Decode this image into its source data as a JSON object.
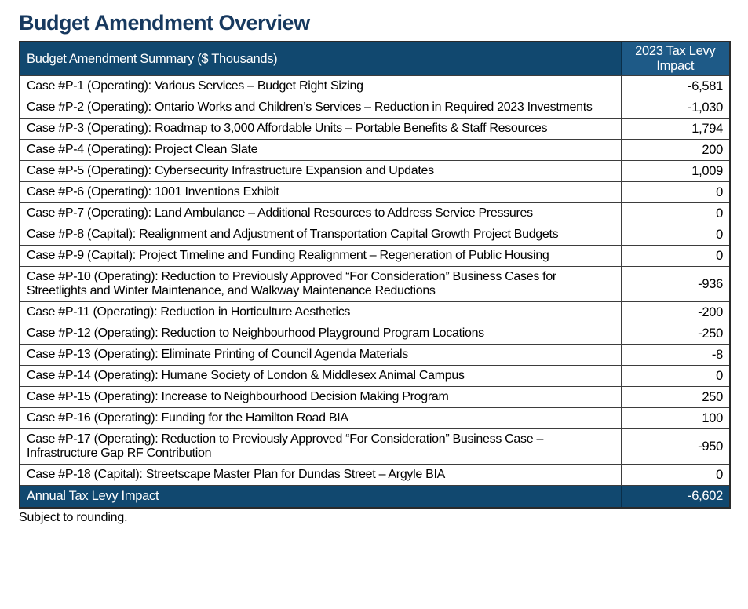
{
  "page": {
    "title": "Budget Amendment Overview",
    "footnote": "Subject to rounding."
  },
  "table": {
    "header": {
      "summary": "Budget Amendment Summary ($ Thousands)",
      "impact": "2023 Tax Levy Impact"
    },
    "rows": [
      {
        "label": "Case #P-1 (Operating): Various Services – Budget Right Sizing",
        "value": "-6,581"
      },
      {
        "label": "Case #P-2 (Operating): Ontario Works and Children’s Services – Reduction in Required 2023 Investments",
        "value": "-1,030"
      },
      {
        "label": "Case #P-3 (Operating): Roadmap to 3,000 Affordable Units – Portable Benefits & Staff Resources",
        "value": "1,794"
      },
      {
        "label": "Case #P-4 (Operating): Project Clean Slate",
        "value": "200"
      },
      {
        "label": "Case #P-5 (Operating): Cybersecurity Infrastructure Expansion and Updates",
        "value": "1,009"
      },
      {
        "label": "Case #P-6 (Operating): 1001 Inventions Exhibit",
        "value": "0"
      },
      {
        "label": "Case #P-7 (Operating): Land Ambulance – Additional Resources to Address Service Pressures",
        "value": "0"
      },
      {
        "label": "Case #P-8 (Capital): Realignment and Adjustment of Transportation Capital Growth Project Budgets",
        "value": "0"
      },
      {
        "label": "Case #P-9 (Capital): Project Timeline and Funding Realignment – Regeneration of Public Housing",
        "value": "0"
      },
      {
        "label": "Case #P-10 (Operating): Reduction to Previously Approved “For Consideration” Business Cases for Streetlights and Winter Maintenance, and Walkway Maintenance Reductions",
        "value": "-936"
      },
      {
        "label": "Case #P-11 (Operating): Reduction in Horticulture Aesthetics",
        "value": "-200"
      },
      {
        "label": "Case #P-12 (Operating): Reduction to Neighbourhood Playground Program Locations",
        "value": "-250"
      },
      {
        "label": "Case #P-13 (Operating): Eliminate Printing of Council Agenda Materials",
        "value": "-8"
      },
      {
        "label": "Case #P-14 (Operating): Humane Society of London & Middlesex Animal Campus",
        "value": "0"
      },
      {
        "label": "Case #P-15 (Operating): Increase to Neighbourhood Decision Making Program",
        "value": "250"
      },
      {
        "label": "Case #P-16 (Operating): Funding for the Hamilton Road BIA",
        "value": "100"
      },
      {
        "label": "Case #P-17 (Operating): Reduction to Previously Approved “For Consideration” Business Case – Infrastructure Gap RF Contribution",
        "value": "-950"
      },
      {
        "label": "Case #P-18 (Capital): Streetscape Master Plan for Dundas Street – Argyle BIA",
        "value": "0"
      }
    ],
    "footer": {
      "label": "Annual Tax Levy Impact",
      "value": "-6,602"
    }
  },
  "colors": {
    "title_color": "#17395f",
    "header_bg": "#11486f",
    "header_accent_bg": "#1e5a87",
    "footer_bg": "#11486f",
    "grid_line": "#3d3d3d"
  }
}
